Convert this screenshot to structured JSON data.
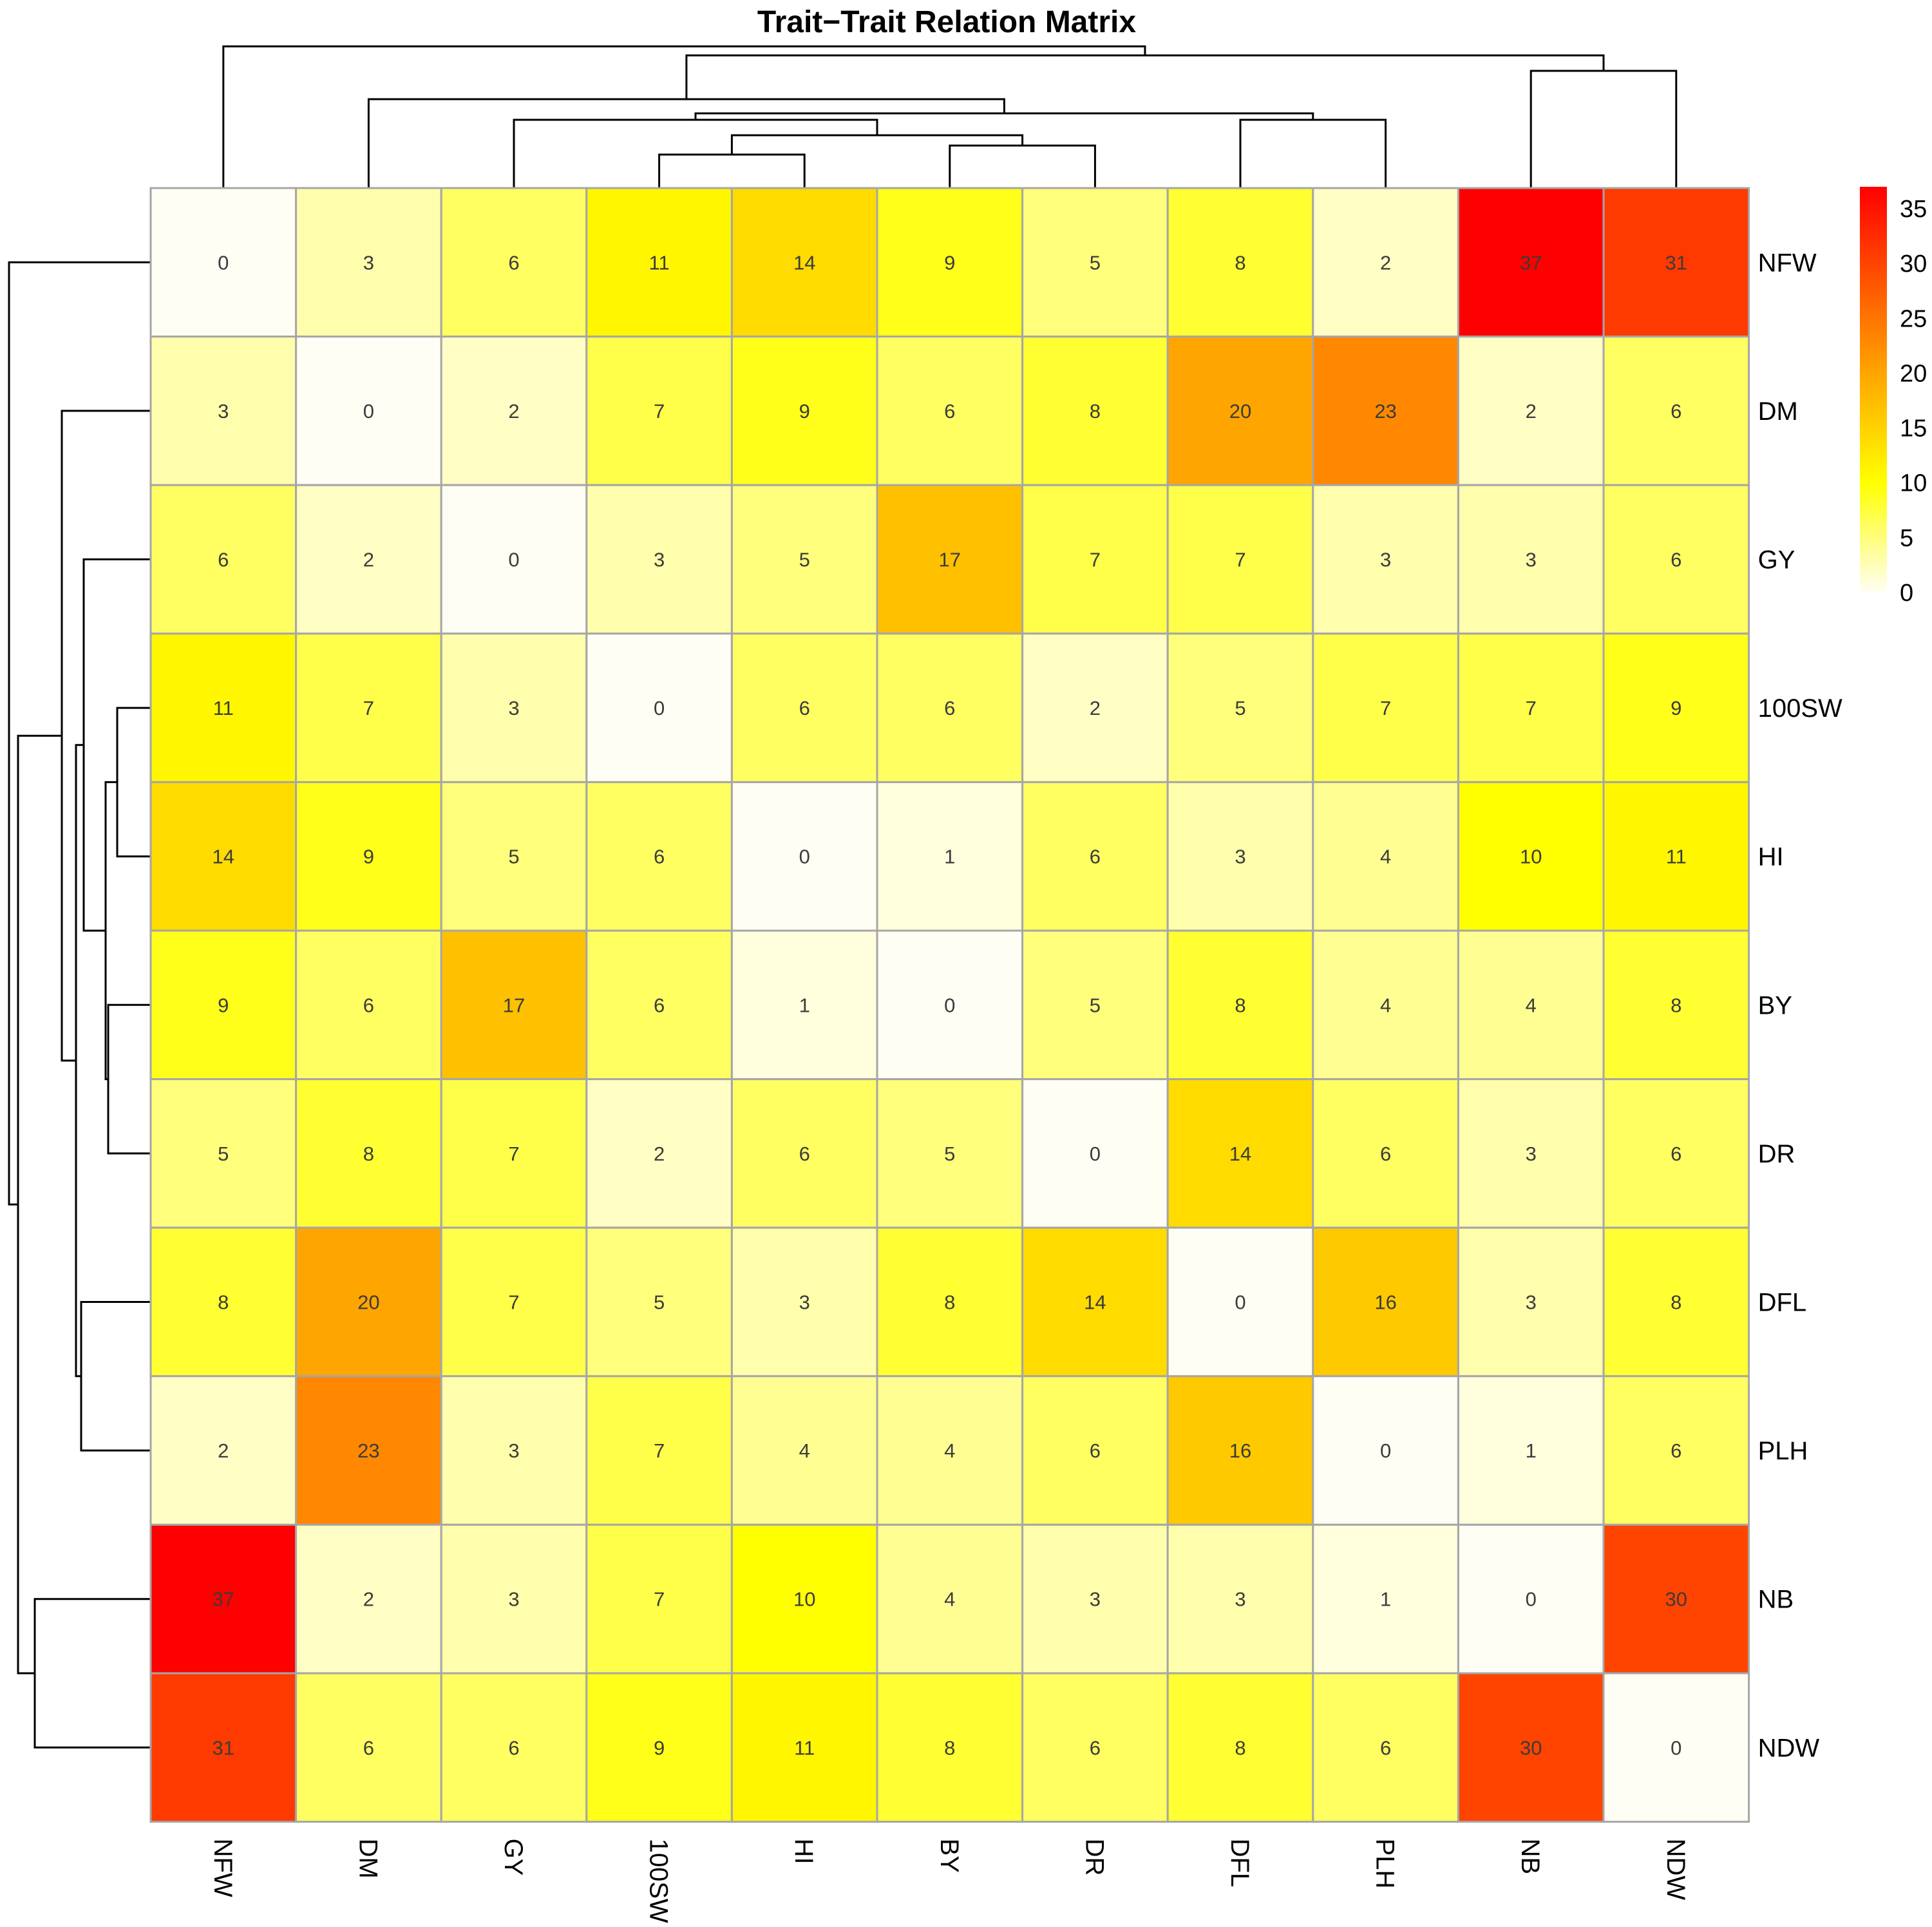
{
  "chart_data": {
    "type": "heatmap",
    "title": "Trait−Trait Relation Matrix",
    "rows": [
      "NFW",
      "DM",
      "GY",
      "100SW",
      "HI",
      "BY",
      "DR",
      "DFL",
      "PLH",
      "NB",
      "NDW"
    ],
    "cols": [
      "NFW",
      "DM",
      "GY",
      "100SW",
      "HI",
      "BY",
      "DR",
      "DFL",
      "PLH",
      "NB",
      "NDW"
    ],
    "values": [
      [
        0,
        3,
        6,
        11,
        14,
        9,
        5,
        8,
        2,
        37,
        31
      ],
      [
        3,
        0,
        2,
        7,
        9,
        6,
        8,
        20,
        23,
        2,
        6
      ],
      [
        6,
        2,
        0,
        3,
        5,
        17,
        7,
        7,
        3,
        3,
        6
      ],
      [
        11,
        7,
        3,
        0,
        6,
        6,
        2,
        5,
        7,
        7,
        9
      ],
      [
        14,
        9,
        5,
        6,
        0,
        1,
        6,
        3,
        4,
        10,
        11
      ],
      [
        9,
        6,
        17,
        6,
        1,
        0,
        5,
        8,
        4,
        4,
        8
      ],
      [
        5,
        8,
        7,
        2,
        6,
        5,
        0,
        14,
        6,
        3,
        6
      ],
      [
        8,
        20,
        7,
        5,
        3,
        8,
        14,
        0,
        16,
        3,
        8
      ],
      [
        2,
        23,
        3,
        7,
        4,
        4,
        6,
        16,
        0,
        1,
        6
      ],
      [
        37,
        2,
        3,
        7,
        10,
        4,
        3,
        3,
        1,
        0,
        30
      ],
      [
        31,
        6,
        6,
        9,
        11,
        8,
        6,
        8,
        6,
        30,
        0
      ]
    ],
    "color_scale": {
      "min": 0,
      "max": 37,
      "stops": [
        {
          "value": 0,
          "color": "#FFFEF5"
        },
        {
          "value": 10,
          "color": "#FFFF00"
        },
        {
          "value": 20,
          "color": "#FFA500"
        },
        {
          "value": 37,
          "color": "#FF0000"
        }
      ]
    },
    "legend": {
      "position": "top-right",
      "ticks": [
        0,
        5,
        10,
        15,
        20,
        25,
        30,
        35
      ]
    },
    "dendrogram": {
      "columns": {
        "order": [
          "NFW",
          "DM",
          "GY",
          "100SW",
          "HI",
          "BY",
          "DR",
          "DFL",
          "PLH",
          "NB",
          "NDW"
        ]
      },
      "rows": {
        "order": [
          "NFW",
          "DM",
          "GY",
          "100SW",
          "HI",
          "BY",
          "DR",
          "DFL",
          "PLH",
          "NB",
          "NDW"
        ]
      }
    },
    "grid": true
  }
}
